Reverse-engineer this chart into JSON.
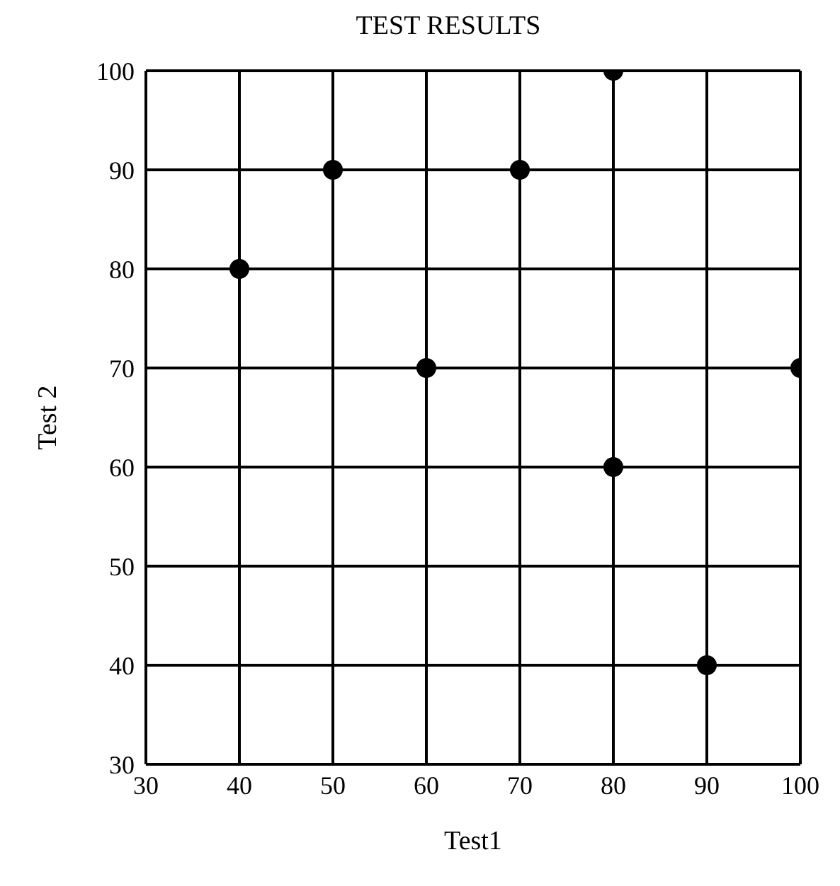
{
  "chart_data": {
    "type": "scatter",
    "title": "TEST RESULTS",
    "xlabel": "Test1",
    "ylabel": "Test 2",
    "x": [
      40,
      50,
      60,
      70,
      80,
      80,
      90,
      100
    ],
    "values": [
      80,
      90,
      70,
      90,
      100,
      60,
      40,
      70
    ],
    "color": "#000000",
    "marker": "circle",
    "grid": true,
    "xlim": [
      30,
      100
    ],
    "xticks": [
      30,
      40,
      50,
      60,
      70,
      80,
      90,
      100
    ],
    "ylim": [
      30,
      100
    ],
    "yticks": [
      30,
      40,
      50,
      60,
      70,
      80,
      90,
      100
    ]
  }
}
